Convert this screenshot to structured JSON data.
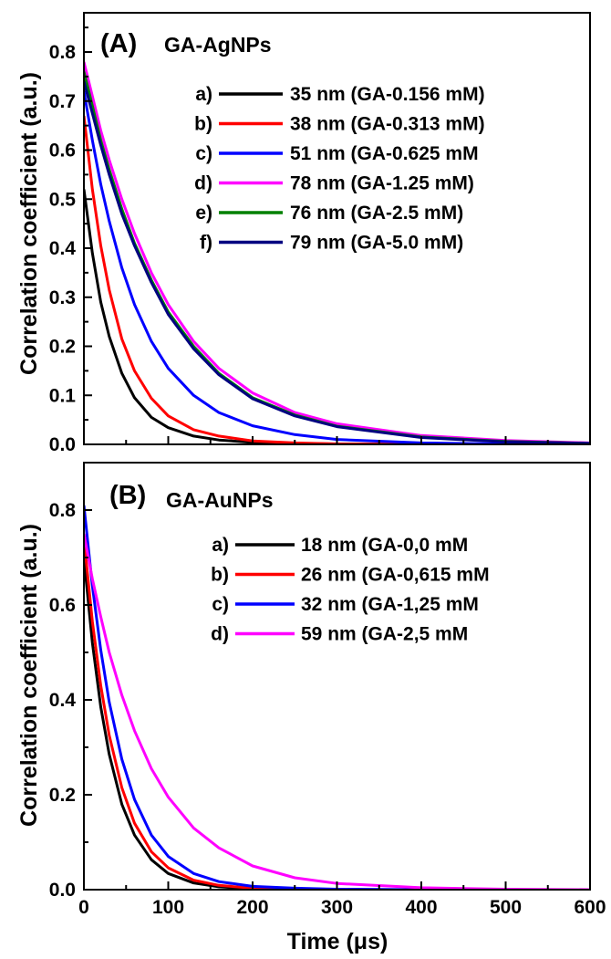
{
  "chart_data": [
    {
      "type": "line",
      "panel_label": "(A)",
      "title": "GA-AgNPs",
      "xlabel": "Time (μs)",
      "ylabel": "Correlation coefficient (a.u.)",
      "xlim": [
        0,
        600
      ],
      "ylim": [
        0,
        0.88
      ],
      "xticks": [
        0,
        100,
        200,
        300,
        400,
        500,
        600
      ],
      "yticks": [
        0.0,
        0.1,
        0.2,
        0.3,
        0.4,
        0.5,
        0.6,
        0.7,
        0.8
      ],
      "ytick_labels": [
        "0.0",
        "0.1",
        "0.2",
        "0.3",
        "0.4",
        "0.5",
        "0.6",
        "0.7",
        "0.8"
      ],
      "legend_position": "top-right",
      "series": [
        {
          "marker": "a)",
          "name": "35 nm (GA-0.156 mM)",
          "color": "#000000",
          "x": [
            0,
            10,
            20,
            30,
            45,
            60,
            80,
            100,
            130,
            160,
            200,
            250,
            300,
            400,
            500,
            600
          ],
          "y": [
            0.52,
            0.39,
            0.29,
            0.22,
            0.145,
            0.095,
            0.055,
            0.034,
            0.017,
            0.009,
            0.004,
            0.002,
            0.001,
            0.0,
            0.0,
            0.0
          ]
        },
        {
          "marker": "b)",
          "name": "38 nm (GA-0.313 mM)",
          "color": "#ff0000",
          "x": [
            0,
            10,
            20,
            30,
            45,
            60,
            80,
            100,
            130,
            160,
            200,
            250,
            300,
            400,
            500,
            600
          ],
          "y": [
            0.67,
            0.52,
            0.405,
            0.315,
            0.215,
            0.15,
            0.094,
            0.058,
            0.03,
            0.017,
            0.007,
            0.003,
            0.001,
            0.0,
            0.0,
            0.0
          ]
        },
        {
          "marker": "c)",
          "name": "51 nm (GA-0.625 mM",
          "color": "#0000ff",
          "x": [
            0,
            10,
            20,
            30,
            45,
            60,
            80,
            100,
            130,
            160,
            200,
            250,
            300,
            400,
            500,
            600
          ],
          "y": [
            0.72,
            0.62,
            0.53,
            0.455,
            0.36,
            0.285,
            0.21,
            0.155,
            0.1,
            0.065,
            0.038,
            0.02,
            0.01,
            0.003,
            0.001,
            0.0
          ]
        },
        {
          "marker": "d)",
          "name": "78 nm (GA-1.25 mM)",
          "color": "#ff00ff",
          "x": [
            0,
            10,
            20,
            30,
            45,
            60,
            80,
            100,
            130,
            160,
            200,
            250,
            300,
            400,
            500,
            600
          ],
          "y": [
            0.78,
            0.71,
            0.64,
            0.58,
            0.5,
            0.43,
            0.35,
            0.285,
            0.21,
            0.155,
            0.105,
            0.065,
            0.042,
            0.018,
            0.008,
            0.003
          ]
        },
        {
          "marker": "e)",
          "name": "76 nm (GA-2.5 mM)",
          "color": "#008000",
          "x": [
            0,
            10,
            20,
            30,
            45,
            60,
            80,
            100,
            130,
            160,
            200,
            250,
            300,
            400,
            500,
            600
          ],
          "y": [
            0.76,
            0.69,
            0.62,
            0.56,
            0.48,
            0.41,
            0.335,
            0.27,
            0.2,
            0.145,
            0.095,
            0.06,
            0.037,
            0.015,
            0.006,
            0.002
          ]
        },
        {
          "marker": "f)",
          "name": "79 nm (GA-5.0 mM)",
          "color": "#000080",
          "x": [
            0,
            10,
            20,
            30,
            45,
            60,
            80,
            100,
            130,
            160,
            200,
            250,
            300,
            400,
            500,
            600
          ],
          "y": [
            0.74,
            0.675,
            0.61,
            0.55,
            0.47,
            0.405,
            0.33,
            0.265,
            0.195,
            0.142,
            0.093,
            0.058,
            0.036,
            0.014,
            0.005,
            0.002
          ]
        }
      ]
    },
    {
      "type": "line",
      "panel_label": "(B)",
      "title": "GA-AuNPs",
      "xlabel": "Time (μs)",
      "ylabel": "Correlation coefficient (a.u.)",
      "xlim": [
        0,
        600
      ],
      "ylim": [
        0,
        0.9
      ],
      "xticks": [
        0,
        100,
        200,
        300,
        400,
        500,
        600
      ],
      "yticks": [
        0.0,
        0.2,
        0.4,
        0.6,
        0.8
      ],
      "ytick_labels": [
        "0.0",
        "0.2",
        "0.4",
        "0.6",
        "0.8"
      ],
      "legend_position": "top-right",
      "series": [
        {
          "marker": "a)",
          "name": "18 nm (GA-0,0 mM",
          "color": "#000000",
          "x": [
            0,
            10,
            20,
            30,
            45,
            60,
            80,
            100,
            130,
            160,
            200,
            250,
            300,
            400,
            500,
            600
          ],
          "y": [
            0.7,
            0.52,
            0.385,
            0.285,
            0.18,
            0.115,
            0.063,
            0.034,
            0.014,
            0.006,
            0.002,
            0.001,
            0.0,
            0.0,
            0.0,
            0.0
          ]
        },
        {
          "marker": "b)",
          "name": "26 nm (GA-0,615 mM",
          "color": "#ff0000",
          "x": [
            0,
            10,
            20,
            30,
            45,
            60,
            80,
            100,
            130,
            160,
            200,
            250,
            300,
            400,
            500,
            600
          ],
          "y": [
            0.74,
            0.565,
            0.43,
            0.325,
            0.215,
            0.14,
            0.08,
            0.046,
            0.02,
            0.009,
            0.003,
            0.001,
            0.0,
            0.0,
            0.0,
            0.0
          ]
        },
        {
          "marker": "c)",
          "name": "32 nm (GA-1,25 mM",
          "color": "#0000ff",
          "x": [
            0,
            10,
            20,
            30,
            45,
            60,
            80,
            100,
            130,
            160,
            200,
            250,
            300,
            400,
            500,
            600
          ],
          "y": [
            0.81,
            0.64,
            0.505,
            0.395,
            0.275,
            0.19,
            0.115,
            0.07,
            0.034,
            0.017,
            0.007,
            0.003,
            0.001,
            0.0,
            0.0,
            0.0
          ]
        },
        {
          "marker": "d)",
          "name": "59 nm (GA-2,5 mM",
          "color": "#ff00ff",
          "x": [
            0,
            10,
            20,
            30,
            45,
            60,
            80,
            100,
            130,
            160,
            200,
            250,
            300,
            400,
            500,
            600
          ],
          "y": [
            0.75,
            0.655,
            0.575,
            0.5,
            0.41,
            0.335,
            0.255,
            0.195,
            0.13,
            0.088,
            0.05,
            0.025,
            0.013,
            0.004,
            0.001,
            0.0
          ]
        }
      ]
    }
  ]
}
